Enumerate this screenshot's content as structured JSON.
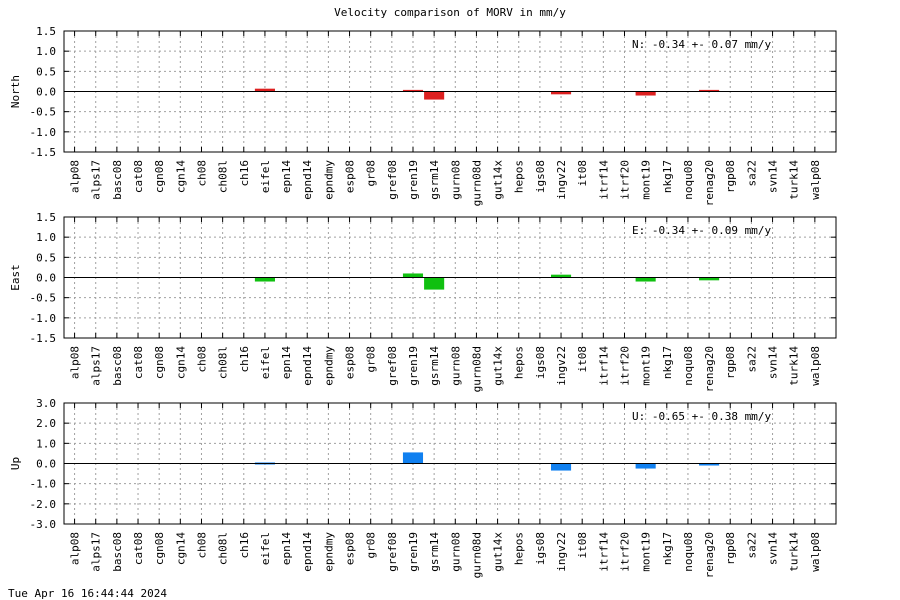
{
  "title": "Velocity comparison of MORV in mm/y",
  "footer": "Tue Apr 16 16:44:44 2024",
  "chart_data": [
    {
      "type": "bar",
      "ylabel": "North",
      "annotation": "N:  -0.34 +-  0.07 mm/y",
      "color": "#dd2020",
      "ylim": [
        -1.5,
        1.5
      ],
      "yticks": [
        "1.5",
        "1.0",
        "0.5",
        "0.0",
        "-0.5",
        "-1.0",
        "-1.5"
      ],
      "categories": [
        "alp08",
        "alps17",
        "basc08",
        "cat08",
        "cgn08",
        "cgn14",
        "ch08",
        "ch08l",
        "ch16",
        "eifel",
        "epn14",
        "epnd14",
        "epndmy",
        "esp08",
        "gr08",
        "gref08",
        "gren19",
        "gsrm14",
        "gurn08",
        "gurn08d",
        "gut14x",
        "hepos",
        "igs08",
        "ingv22",
        "it08",
        "itrf14",
        "itrf20",
        "mont19",
        "nkg17",
        "noqu08",
        "renag20",
        "rgp08",
        "sa22",
        "svn14",
        "turk14",
        "walp08"
      ],
      "values": [
        0,
        0,
        0,
        0,
        0,
        0,
        0,
        0,
        0,
        0.07,
        0,
        0,
        0,
        0,
        0,
        0,
        0.04,
        -0.2,
        0,
        0,
        0,
        0,
        0,
        -0.07,
        0,
        0,
        0,
        -0.1,
        0,
        0,
        0.04,
        0,
        0,
        0,
        0,
        0
      ]
    },
    {
      "type": "bar",
      "ylabel": "East",
      "annotation": "E:  -0.34 +-  0.09 mm/y",
      "color": "#10c010",
      "ylim": [
        -1.5,
        1.5
      ],
      "yticks": [
        "1.5",
        "1.0",
        "0.5",
        "0.0",
        "-0.5",
        "-1.0",
        "-1.5"
      ],
      "categories": [
        "alp08",
        "alps17",
        "basc08",
        "cat08",
        "cgn08",
        "cgn14",
        "ch08",
        "ch08l",
        "ch16",
        "eifel",
        "epn14",
        "epnd14",
        "epndmy",
        "esp08",
        "gr08",
        "gref08",
        "gren19",
        "gsrm14",
        "gurn08",
        "gurn08d",
        "gut14x",
        "hepos",
        "igs08",
        "ingv22",
        "it08",
        "itrf14",
        "itrf20",
        "mont19",
        "nkg17",
        "noqu08",
        "renag20",
        "rgp08",
        "sa22",
        "svn14",
        "turk14",
        "walp08"
      ],
      "values": [
        0,
        0,
        0,
        0,
        0,
        0,
        0,
        0,
        0,
        -0.1,
        0,
        0,
        0,
        0,
        0,
        0,
        0.1,
        -0.3,
        0,
        0,
        0,
        0,
        0,
        0.07,
        0,
        0,
        0,
        -0.1,
        0,
        0,
        -0.07,
        0,
        0,
        0,
        0,
        0
      ]
    },
    {
      "type": "bar",
      "ylabel": "Up",
      "annotation": "U:  -0.65 +-  0.38 mm/y",
      "color": "#1080f0",
      "ylim": [
        -3.0,
        3.0
      ],
      "yticks": [
        "3.0",
        "2.0",
        "1.0",
        "0.0",
        "-1.0",
        "-2.0",
        "-3.0"
      ],
      "categories": [
        "alp08",
        "alps17",
        "basc08",
        "cat08",
        "cgn08",
        "cgn14",
        "ch08",
        "ch08l",
        "ch16",
        "eifel",
        "epn14",
        "epnd14",
        "epndmy",
        "esp08",
        "gr08",
        "gref08",
        "gren19",
        "gsrm14",
        "gurn08",
        "gurn08d",
        "gut14x",
        "hepos",
        "igs08",
        "ingv22",
        "it08",
        "itrf14",
        "itrf20",
        "mont19",
        "nkg17",
        "noqu08",
        "renag20",
        "rgp08",
        "sa22",
        "svn14",
        "turk14",
        "walp08"
      ],
      "values": [
        0,
        0,
        0,
        0,
        0,
        0,
        0,
        0,
        0,
        0.05,
        0,
        0,
        0,
        0,
        0,
        0,
        0.55,
        0,
        0,
        0,
        0,
        0,
        0,
        -0.35,
        0,
        0,
        0,
        -0.25,
        0,
        0,
        -0.1,
        0,
        0,
        0,
        0,
        0
      ]
    }
  ]
}
